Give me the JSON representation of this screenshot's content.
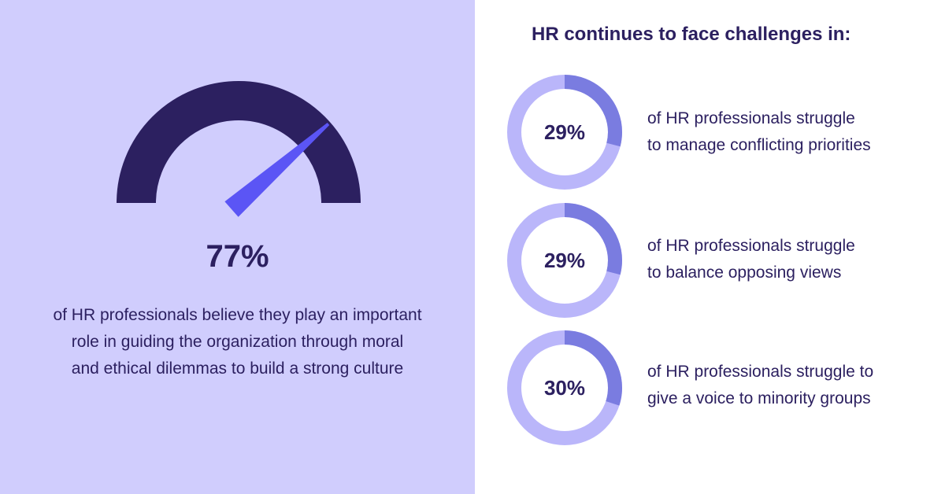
{
  "colors": {
    "panel_bg": "#d0cdfd",
    "dark_navy": "#2c2060",
    "needle": "#5b55f5",
    "donut_track": "#bab6fa",
    "donut_fill": "#7a7ce0",
    "text": "#2c2060"
  },
  "chart_data": [
    {
      "type": "gauge",
      "value": 77,
      "max": 100,
      "label": "77%",
      "description_lines": [
        "of HR professionals believe they play an important",
        "role in guiding the organization through moral",
        "and ethical dilemmas to build a strong culture"
      ]
    },
    {
      "type": "pie",
      "title": "HR continues to face challenges in:",
      "items": [
        {
          "value": 29,
          "label": "29%",
          "description_lines": [
            "of HR professionals struggle",
            "to manage conflicting priorities"
          ]
        },
        {
          "value": 29,
          "label": "29%",
          "description_lines": [
            "of HR professionals struggle",
            "to balance opposing views"
          ]
        },
        {
          "value": 30,
          "label": "30%",
          "description_lines": [
            "of HR professionals struggle to",
            "give a voice to minority groups"
          ]
        }
      ]
    }
  ]
}
